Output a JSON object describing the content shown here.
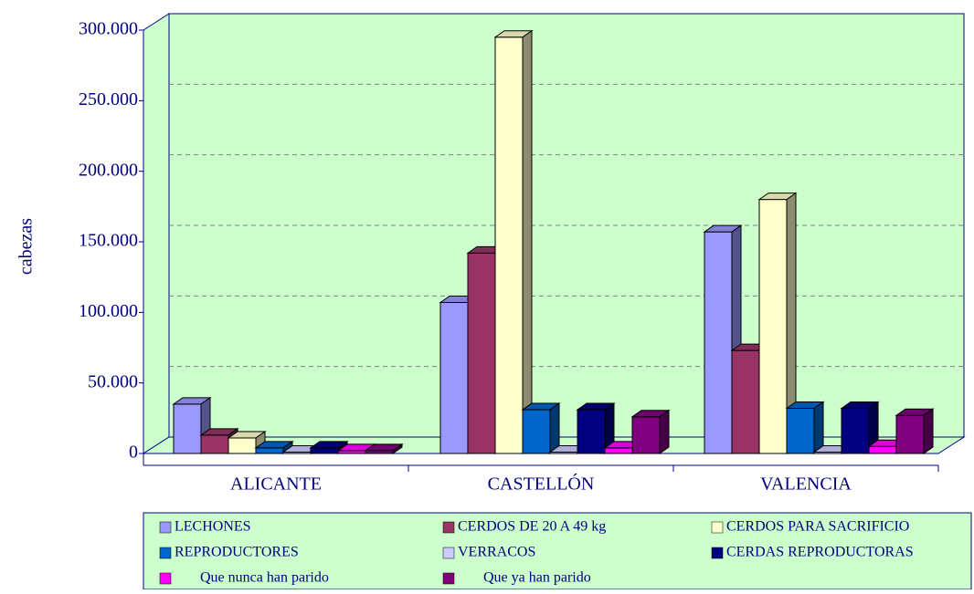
{
  "chart_data": {
    "type": "bar3d",
    "y_label": "cabezas",
    "categories": [
      "ALICANTE",
      "CASTELLÓN",
      "VALENCIA"
    ],
    "series": [
      {
        "name": "LECHONES",
        "color": "#9999ff",
        "values": [
          35000,
          107000,
          157000
        ]
      },
      {
        "name": "CERDOS DE 20 A 49 kg",
        "color": "#993366",
        "values": [
          13000,
          142000,
          73000
        ]
      },
      {
        "name": "CERDOS PARA SACRIFICIO",
        "color": "#ffffcc",
        "values": [
          11000,
          295000,
          180000
        ]
      },
      {
        "name": "REPRODUCTORES",
        "color": "#0066cc",
        "values": [
          4000,
          31000,
          32000
        ]
      },
      {
        "name": "VERRACOS",
        "color": "#ccccff",
        "values": [
          1000,
          1000,
          1000
        ]
      },
      {
        "name": "CERDAS REPRODUCTORAS",
        "color": "#000080",
        "values": [
          4000,
          31000,
          32000
        ]
      },
      {
        "name": "Que nunca han parido",
        "color": "#ff00ff",
        "values": [
          2000,
          4000,
          5000
        ]
      },
      {
        "name": "Que ya han parido",
        "color": "#800080",
        "values": [
          2000,
          26000,
          27000
        ]
      }
    ],
    "ylim": [
      0,
      300000
    ],
    "yticks": [
      {
        "value": 0,
        "label": "0"
      },
      {
        "value": 50000,
        "label": "50.000"
      },
      {
        "value": 100000,
        "label": "100.000"
      },
      {
        "value": 150000,
        "label": "150.000"
      },
      {
        "value": 200000,
        "label": "200.000"
      },
      {
        "value": 250000,
        "label": "250.000"
      },
      {
        "value": 300000,
        "label": "300.000"
      }
    ],
    "grid": true
  }
}
